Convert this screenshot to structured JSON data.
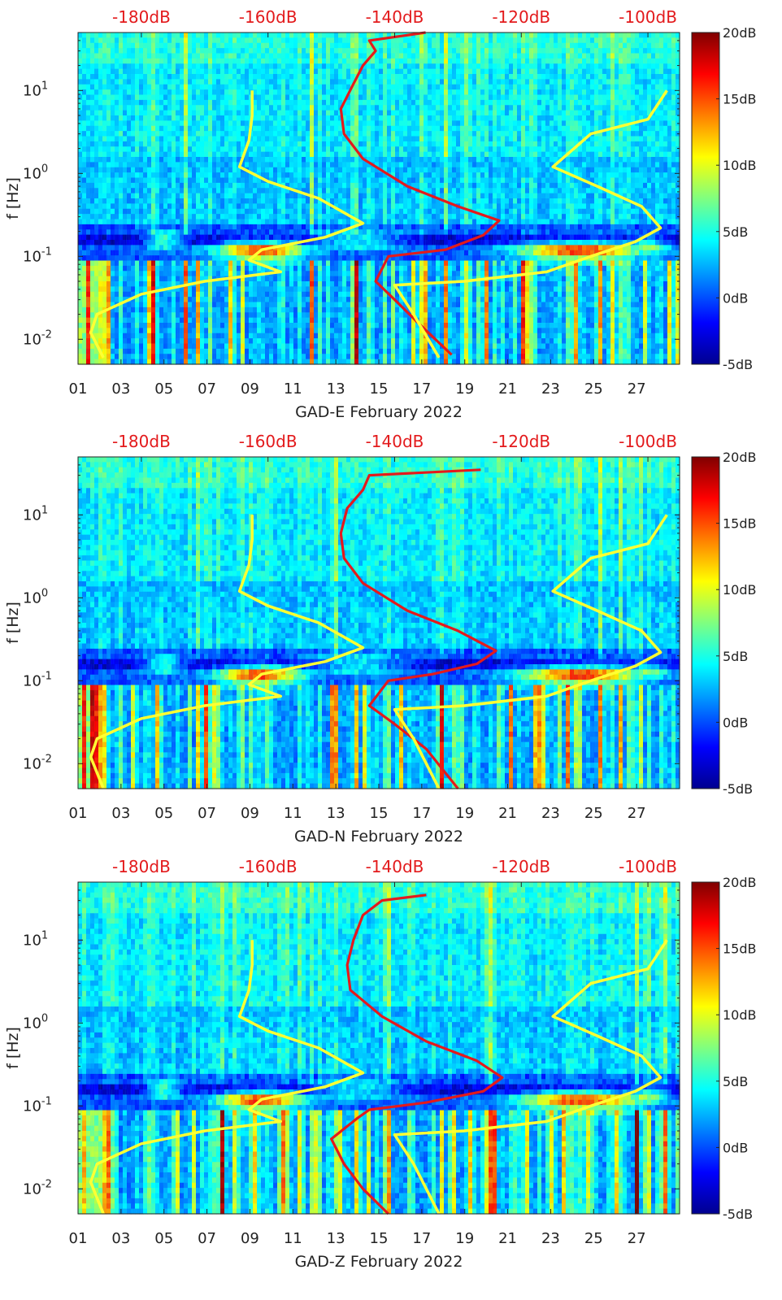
{
  "page": {
    "background": "#ffffff"
  },
  "colors": {
    "top_axis_labels": "#e31a1c",
    "red_curve": "#e41a1c",
    "yellow_curve": "#ffff33",
    "colormap": [
      "#00008f",
      "#0000ff",
      "#00ffff",
      "#ffff00",
      "#ff0000",
      "#800000"
    ]
  },
  "chart_data": [
    {
      "type": "heatmap",
      "title": "",
      "xlabel": "GAD-E February 2022",
      "ylabel": "f [Hz]",
      "x_tick_labels": [
        "01",
        "03",
        "05",
        "07",
        "09",
        "11",
        "13",
        "15",
        "17",
        "19",
        "21",
        "23",
        "25",
        "27"
      ],
      "x_range_days": [
        1,
        29
      ],
      "y_scale": "log",
      "y_range_hz": [
        0.005,
        50
      ],
      "y_tick_labels": [
        "10^-2",
        "10^-1",
        "10^0",
        "10^1"
      ],
      "top_axis_labels": [
        "-180dB",
        "-160dB",
        "-140dB",
        "-120dB",
        "-100dB"
      ],
      "top_axis_range_db": [
        -190,
        -95
      ],
      "colorbar": {
        "range_db": [
          -5,
          20
        ],
        "tick_labels": [
          "-5dB",
          "0dB",
          "5dB",
          "10dB",
          "15dB",
          "20dB"
        ]
      },
      "series": [
        {
          "color": "red",
          "points": [
            [
              -135.1,
              50
            ],
            [
              -144,
              40
            ],
            [
              -143,
              30
            ],
            [
              -145,
              20
            ],
            [
              -146.5,
              12
            ],
            [
              -148.5,
              6
            ],
            [
              -148,
              3
            ],
            [
              -145,
              1.5
            ],
            [
              -138,
              0.7
            ],
            [
              -130,
              0.4
            ],
            [
              -123.5,
              0.27
            ],
            [
              -126,
              0.18
            ],
            [
              -132,
              0.12
            ],
            [
              -141,
              0.1
            ],
            [
              -143,
              0.05
            ],
            [
              -140,
              0.03
            ],
            [
              -136,
              0.015
            ],
            [
              -131,
              0.0065
            ]
          ]
        },
        {
          "color": "yellow",
          "points": [
            [
              -162.5,
              10
            ],
            [
              -162.5,
              5
            ],
            [
              -163,
              2.5
            ],
            [
              -164.5,
              1.2
            ],
            [
              -160,
              0.8
            ],
            [
              -152,
              0.5
            ],
            [
              -145,
              0.25
            ],
            [
              -151,
              0.17
            ],
            [
              -161,
              0.12
            ],
            [
              -163,
              0.09
            ],
            [
              -158,
              0.065
            ],
            [
              -170,
              0.05
            ],
            [
              -180,
              0.035
            ],
            [
              -187,
              0.02
            ],
            [
              -188,
              0.012
            ],
            [
              -186,
              0.006
            ]
          ]
        },
        {
          "color": "yellow",
          "points": [
            [
              -97,
              10
            ],
            [
              -100,
              4.5
            ],
            [
              -109,
              3
            ],
            [
              -115,
              1.2
            ],
            [
              -108,
              0.7
            ],
            [
              -101,
              0.4
            ],
            [
              -98,
              0.22
            ],
            [
              -102,
              0.15
            ],
            [
              -109,
              0.1
            ],
            [
              -116,
              0.065
            ],
            [
              -129,
              0.05
            ],
            [
              -140,
              0.045
            ],
            [
              -137,
              0.02
            ],
            [
              -133,
              0.006
            ]
          ]
        }
      ]
    },
    {
      "type": "heatmap",
      "title": "",
      "xlabel": "GAD-N February 2022",
      "ylabel": "f [Hz]",
      "x_tick_labels": [
        "01",
        "03",
        "05",
        "07",
        "09",
        "11",
        "13",
        "15",
        "17",
        "19",
        "21",
        "23",
        "25",
        "27"
      ],
      "x_range_days": [
        1,
        29
      ],
      "y_scale": "log",
      "y_range_hz": [
        0.005,
        50
      ],
      "y_tick_labels": [
        "10^-2",
        "10^-1",
        "10^0",
        "10^1"
      ],
      "top_axis_labels": [
        "-180dB",
        "-160dB",
        "-140dB",
        "-120dB",
        "-100dB"
      ],
      "top_axis_range_db": [
        -190,
        -95
      ],
      "colorbar": {
        "range_db": [
          -5,
          20
        ],
        "tick_labels": [
          "-5dB",
          "0dB",
          "5dB",
          "10dB",
          "15dB",
          "20dB"
        ]
      },
      "series": [
        {
          "color": "red",
          "points": [
            [
              -126.4,
              35
            ],
            [
              -144,
              30
            ],
            [
              -145,
              20
            ],
            [
              -147.5,
              12
            ],
            [
              -148.5,
              6
            ],
            [
              -148,
              3
            ],
            [
              -145,
              1.5
            ],
            [
              -138,
              0.7
            ],
            [
              -130,
              0.4
            ],
            [
              -124,
              0.23
            ],
            [
              -127,
              0.16
            ],
            [
              -134,
              0.12
            ],
            [
              -141,
              0.1
            ],
            [
              -144,
              0.05
            ],
            [
              -140,
              0.03
            ],
            [
              -135,
              0.015
            ],
            [
              -130,
              0.005
            ]
          ]
        },
        {
          "color": "yellow",
          "points": [
            [
              -162.5,
              10
            ],
            [
              -162.5,
              5
            ],
            [
              -163,
              2.5
            ],
            [
              -164.5,
              1.2
            ],
            [
              -160,
              0.8
            ],
            [
              -152,
              0.5
            ],
            [
              -145,
              0.25
            ],
            [
              -151,
              0.17
            ],
            [
              -161,
              0.12
            ],
            [
              -163,
              0.09
            ],
            [
              -158,
              0.065
            ],
            [
              -170,
              0.05
            ],
            [
              -180,
              0.035
            ],
            [
              -187,
              0.02
            ],
            [
              -188,
              0.012
            ],
            [
              -186,
              0.005
            ]
          ]
        },
        {
          "color": "yellow",
          "points": [
            [
              -97,
              10
            ],
            [
              -100,
              4.5
            ],
            [
              -109,
              3
            ],
            [
              -115,
              1.2
            ],
            [
              -108,
              0.7
            ],
            [
              -101,
              0.4
            ],
            [
              -98,
              0.22
            ],
            [
              -102,
              0.15
            ],
            [
              -109,
              0.1
            ],
            [
              -116,
              0.065
            ],
            [
              -129,
              0.05
            ],
            [
              -140,
              0.045
            ],
            [
              -137,
              0.02
            ],
            [
              -133,
              0.005
            ]
          ]
        }
      ]
    },
    {
      "type": "heatmap",
      "title": "",
      "xlabel": "GAD-Z February 2022",
      "ylabel": "f [Hz]",
      "x_tick_labels": [
        "01",
        "03",
        "05",
        "07",
        "09",
        "11",
        "13",
        "15",
        "17",
        "19",
        "21",
        "23",
        "25",
        "27"
      ],
      "x_range_days": [
        1,
        29
      ],
      "y_scale": "log",
      "y_range_hz": [
        0.005,
        50
      ],
      "y_tick_labels": [
        "10^-2",
        "10^-1",
        "10^0",
        "10^1"
      ],
      "top_axis_labels": [
        "-180dB",
        "-160dB",
        "-140dB",
        "-120dB",
        "-100dB"
      ],
      "top_axis_range_db": [
        -190,
        -95
      ],
      "colorbar": {
        "range_db": [
          -5,
          20
        ],
        "tick_labels": [
          "-5dB",
          "0dB",
          "5dB",
          "10dB",
          "15dB",
          "20dB"
        ]
      },
      "series": [
        {
          "color": "red",
          "points": [
            [
              -135,
              35
            ],
            [
              -142,
              30
            ],
            [
              -145,
              20
            ],
            [
              -146.5,
              10
            ],
            [
              -147.5,
              5
            ],
            [
              -147,
              2.5
            ],
            [
              -142,
              1.2
            ],
            [
              -135,
              0.6
            ],
            [
              -127,
              0.35
            ],
            [
              -123,
              0.22
            ],
            [
              -126,
              0.15
            ],
            [
              -135,
              0.11
            ],
            [
              -144,
              0.09
            ],
            [
              -146,
              0.07
            ],
            [
              -150,
              0.04
            ],
            [
              -148,
              0.02
            ],
            [
              -145,
              0.01
            ],
            [
              -141,
              0.005
            ]
          ]
        },
        {
          "color": "yellow",
          "points": [
            [
              -162.5,
              10
            ],
            [
              -162.5,
              5
            ],
            [
              -163,
              2.5
            ],
            [
              -164.5,
              1.2
            ],
            [
              -160,
              0.8
            ],
            [
              -152,
              0.5
            ],
            [
              -145,
              0.25
            ],
            [
              -151,
              0.17
            ],
            [
              -161,
              0.12
            ],
            [
              -163,
              0.09
            ],
            [
              -158,
              0.065
            ],
            [
              -170,
              0.05
            ],
            [
              -180,
              0.035
            ],
            [
              -187,
              0.02
            ],
            [
              -188,
              0.012
            ],
            [
              -186,
              0.005
            ]
          ]
        },
        {
          "color": "yellow",
          "points": [
            [
              -97,
              10
            ],
            [
              -100,
              4.5
            ],
            [
              -109,
              3
            ],
            [
              -115,
              1.2
            ],
            [
              -108,
              0.7
            ],
            [
              -101,
              0.4
            ],
            [
              -98,
              0.22
            ],
            [
              -102,
              0.15
            ],
            [
              -109,
              0.1
            ],
            [
              -116,
              0.065
            ],
            [
              -129,
              0.05
            ],
            [
              -140,
              0.045
            ],
            [
              -137,
              0.02
            ],
            [
              -133,
              0.005
            ]
          ]
        }
      ]
    }
  ]
}
